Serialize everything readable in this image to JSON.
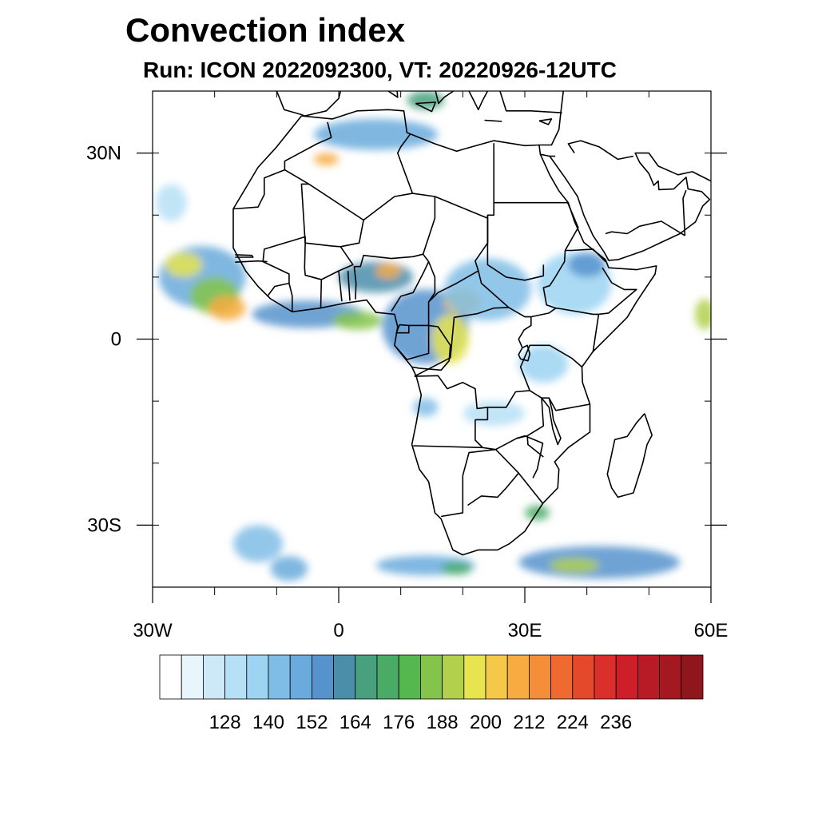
{
  "title": "Convection index",
  "subtitle": "Run: ICON 2022092300,  VT: 20220926-12UTC",
  "map": {
    "lon_range": [
      -30,
      60
    ],
    "lat_range": [
      -40,
      40
    ],
    "x_ticks": [
      {
        "lon": -30,
        "label": "30W"
      },
      {
        "lon": 0,
        "label": "0"
      },
      {
        "lon": 30,
        "label": "30E"
      },
      {
        "lon": 60,
        "label": "60E"
      }
    ],
    "y_ticks": [
      {
        "lat": 30,
        "label": "30N"
      },
      {
        "lat": 0,
        "label": "0"
      },
      {
        "lat": -30,
        "label": "30S"
      }
    ],
    "minor_lon_step": 10,
    "minor_lat_step": 10
  },
  "colorbar": {
    "colors": [
      "#ffffff",
      "#e9f5fc",
      "#cde9f8",
      "#b6e0f6",
      "#9cd4f2",
      "#80bde6",
      "#6aaadc",
      "#5693cc",
      "#4a8eaa",
      "#49a07e",
      "#4aab66",
      "#55b84e",
      "#85c44a",
      "#b2d04c",
      "#e8e450",
      "#f6c84a",
      "#f7ab40",
      "#f48e38",
      "#ee6a30",
      "#e5492b",
      "#db2f2b",
      "#cc1f2a",
      "#b81b26",
      "#a41921",
      "#8f161c"
    ],
    "labels": [
      "128",
      "140",
      "152",
      "164",
      "176",
      "188",
      "200",
      "212",
      "224",
      "236"
    ],
    "label_every_from_index": 3
  },
  "convection_areas": [
    {
      "lon": -22,
      "lat": 10,
      "rx": 7,
      "ry": 5,
      "level": 6
    },
    {
      "lon": -20,
      "lat": 7,
      "rx": 4,
      "ry": 3,
      "level": 12
    },
    {
      "lon": -25,
      "lat": 12,
      "rx": 3,
      "ry": 2,
      "level": 14
    },
    {
      "lon": -18,
      "lat": 5,
      "rx": 3,
      "ry": 2,
      "level": 16
    },
    {
      "lon": -5,
      "lat": 4,
      "rx": 9,
      "ry": 2.2,
      "level": 7
    },
    {
      "lon": 3,
      "lat": 3,
      "rx": 4,
      "ry": 1.5,
      "level": 12
    },
    {
      "lon": 6,
      "lat": 10,
      "rx": 6,
      "ry": 2.5,
      "level": 8
    },
    {
      "lon": 8,
      "lat": 11,
      "rx": 2,
      "ry": 1.2,
      "level": 16
    },
    {
      "lon": 14,
      "lat": 2,
      "rx": 7,
      "ry": 6,
      "level": 7
    },
    {
      "lon": 18,
      "lat": 0,
      "rx": 3,
      "ry": 4,
      "level": 14
    },
    {
      "lon": 20,
      "lat": 6,
      "rx": 3,
      "ry": 2,
      "level": 15
    },
    {
      "lon": 24,
      "lat": 8,
      "rx": 7,
      "ry": 5,
      "level": 5
    },
    {
      "lon": 38,
      "lat": 9,
      "rx": 6,
      "ry": 5,
      "level": 4
    },
    {
      "lon": 40,
      "lat": 12,
      "rx": 3,
      "ry": 2,
      "level": 7
    },
    {
      "lon": 6,
      "lat": 33,
      "rx": 10,
      "ry": 2.5,
      "level": 6
    },
    {
      "lon": -2,
      "lat": 29,
      "rx": 2,
      "ry": 1,
      "level": 16
    },
    {
      "lon": 14,
      "lat": 38.5,
      "rx": 3,
      "ry": 1.5,
      "level": 9
    },
    {
      "lon": 14,
      "lat": -36.5,
      "rx": 8,
      "ry": 1.6,
      "level": 6
    },
    {
      "lon": 19,
      "lat": -37,
      "rx": 2.5,
      "ry": 1,
      "level": 10
    },
    {
      "lon": 42,
      "lat": -36,
      "rx": 13,
      "ry": 2.6,
      "level": 7
    },
    {
      "lon": 38,
      "lat": -36.5,
      "rx": 4,
      "ry": 1.2,
      "level": 13
    },
    {
      "lon": 32,
      "lat": -28,
      "rx": 2,
      "ry": 1.2,
      "level": 10
    },
    {
      "lon": -13,
      "lat": -33,
      "rx": 4,
      "ry": 3,
      "level": 5
    },
    {
      "lon": -8,
      "lat": -37,
      "rx": 3,
      "ry": 2,
      "level": 6
    },
    {
      "lon": 59,
      "lat": 4,
      "rx": 1.6,
      "ry": 2.5,
      "level": 13
    },
    {
      "lon": 25,
      "lat": -12,
      "rx": 5,
      "ry": 2,
      "level": 3
    },
    {
      "lon": 33,
      "lat": -4,
      "rx": 4,
      "ry": 3,
      "level": 4
    },
    {
      "lon": -27,
      "lat": 22,
      "rx": 2.5,
      "ry": 3,
      "level": 3
    },
    {
      "lon": 14,
      "lat": -11,
      "rx": 2,
      "ry": 1.5,
      "level": 5
    }
  ]
}
